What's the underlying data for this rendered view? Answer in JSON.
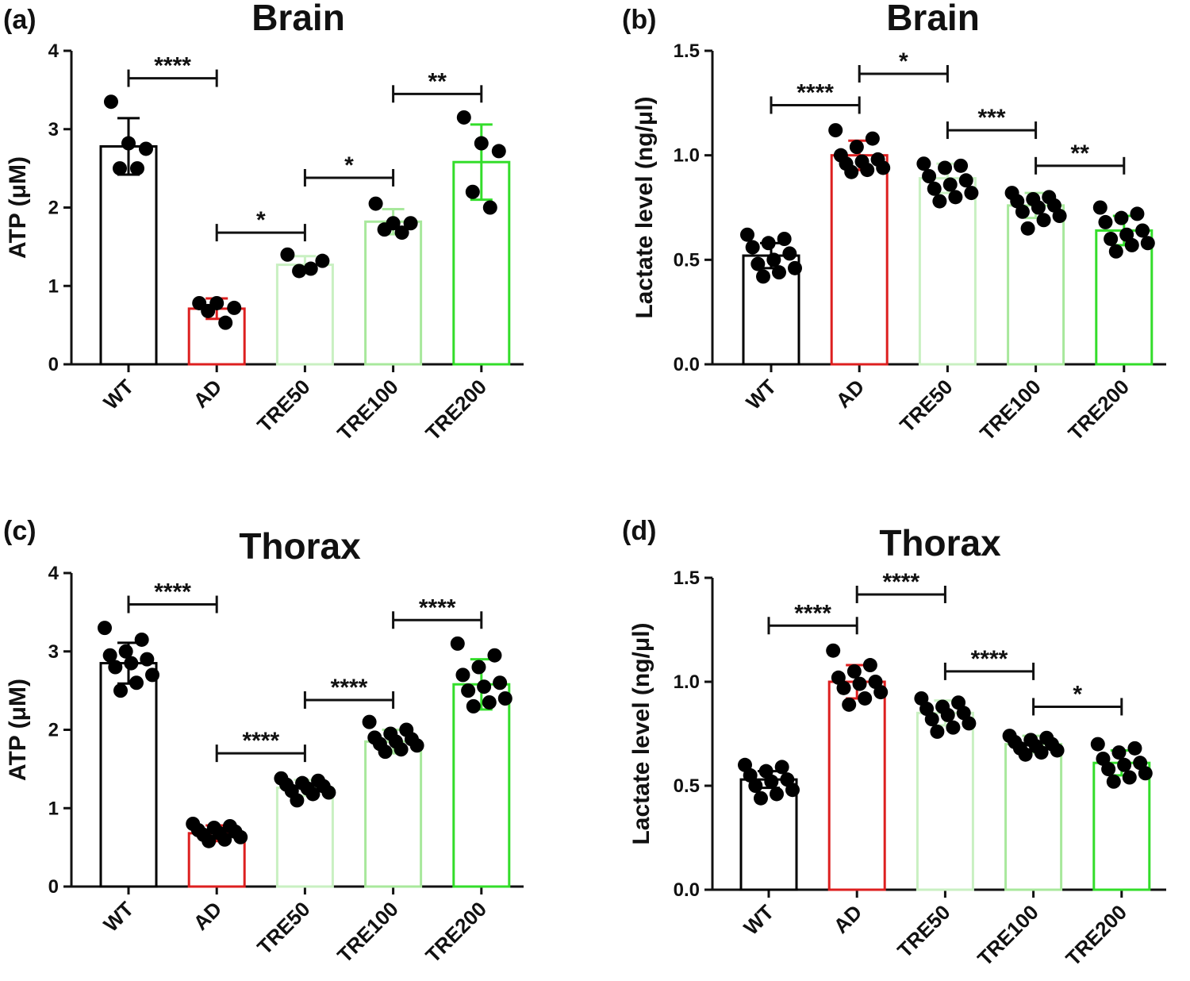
{
  "chart_data": [
    {
      "panel": "(a)",
      "type": "bar",
      "title": "Brain",
      "ylabel": "ATP (μM)",
      "ylim": [
        0,
        4
      ],
      "yticks": [
        "0",
        "1",
        "2",
        "3",
        "4"
      ],
      "categories": [
        "WT",
        "AD",
        "TRE50",
        "TRE100",
        "TRE200"
      ],
      "colors": [
        "#000000",
        "#dd1f1f",
        "#c9f0c2",
        "#a8e89c",
        "#33dd2a"
      ],
      "values": [
        2.78,
        0.71,
        1.27,
        1.82,
        2.58
      ],
      "errors": [
        0.36,
        0.13,
        0.11,
        0.16,
        0.48
      ],
      "points": [
        [
          3.35,
          2.82,
          2.75,
          2.5,
          2.5
        ],
        [
          0.78,
          0.78,
          0.72,
          0.68,
          0.53
        ],
        [
          1.4,
          1.32,
          1.22,
          1.19
        ],
        [
          2.05,
          1.8,
          1.8,
          1.72,
          1.68
        ],
        [
          3.15,
          2.82,
          2.72,
          2.2,
          2.0
        ]
      ],
      "significance": [
        {
          "from": 0,
          "to": 1,
          "label": "****",
          "y": 3.65
        },
        {
          "from": 1,
          "to": 2,
          "label": "*",
          "y": 1.68
        },
        {
          "from": 2,
          "to": 3,
          "label": "*",
          "y": 2.38
        },
        {
          "from": 3,
          "to": 4,
          "label": "**",
          "y": 3.45
        }
      ]
    },
    {
      "panel": "(b)",
      "type": "bar",
      "title": "Brain",
      "ylabel": "Lactate level (ng/μl)",
      "ylim": [
        0,
        1.5
      ],
      "yticks": [
        "0.0",
        "0.5",
        "1.0",
        "1.5"
      ],
      "categories": [
        "WT",
        "AD",
        "TRE50",
        "TRE100",
        "TRE200"
      ],
      "colors": [
        "#000000",
        "#dd1f1f",
        "#c9f0c2",
        "#a8e89c",
        "#33dd2a"
      ],
      "values": [
        0.52,
        1.0,
        0.89,
        0.76,
        0.64
      ],
      "errors": [
        0.06,
        0.07,
        0.07,
        0.06,
        0.07
      ],
      "points": [
        [
          0.62,
          0.6,
          0.58,
          0.56,
          0.53,
          0.5,
          0.48,
          0.46,
          0.44,
          0.42
        ],
        [
          1.12,
          1.08,
          1.04,
          1.0,
          0.98,
          0.97,
          0.96,
          0.94,
          0.93,
          0.92
        ],
        [
          0.96,
          0.95,
          0.94,
          0.9,
          0.88,
          0.86,
          0.84,
          0.82,
          0.8,
          0.78
        ],
        [
          0.82,
          0.8,
          0.79,
          0.78,
          0.76,
          0.75,
          0.73,
          0.71,
          0.69,
          0.65
        ],
        [
          0.75,
          0.72,
          0.7,
          0.68,
          0.64,
          0.62,
          0.6,
          0.58,
          0.57,
          0.54
        ]
      ],
      "significance": [
        {
          "from": 0,
          "to": 1,
          "label": "****",
          "y": 1.24
        },
        {
          "from": 1,
          "to": 2,
          "label": "*",
          "y": 1.39
        },
        {
          "from": 2,
          "to": 3,
          "label": "***",
          "y": 1.12
        },
        {
          "from": 3,
          "to": 4,
          "label": "**",
          "y": 0.95
        }
      ]
    },
    {
      "panel": "(c)",
      "type": "bar",
      "title": "Thorax",
      "ylabel": "ATP (μM)",
      "ylim": [
        0,
        4
      ],
      "yticks": [
        "0",
        "1",
        "2",
        "3",
        "4"
      ],
      "categories": [
        "WT",
        "AD",
        "TRE50",
        "TRE100",
        "TRE200"
      ],
      "colors": [
        "#000000",
        "#dd1f1f",
        "#c9f0c2",
        "#a8e89c",
        "#33dd2a"
      ],
      "values": [
        2.85,
        0.68,
        1.26,
        1.85,
        2.58
      ],
      "errors": [
        0.26,
        0.1,
        0.1,
        0.15,
        0.32
      ],
      "points": [
        [
          3.3,
          3.15,
          3.0,
          2.95,
          2.9,
          2.85,
          2.8,
          2.7,
          2.6,
          2.5
        ],
        [
          0.8,
          0.77,
          0.75,
          0.72,
          0.7,
          0.68,
          0.66,
          0.63,
          0.6,
          0.58
        ],
        [
          1.38,
          1.35,
          1.32,
          1.3,
          1.28,
          1.25,
          1.22,
          1.2,
          1.18,
          1.1
        ],
        [
          2.1,
          2.0,
          1.95,
          1.9,
          1.88,
          1.85,
          1.82,
          1.8,
          1.75,
          1.72
        ],
        [
          3.1,
          2.95,
          2.8,
          2.7,
          2.6,
          2.55,
          2.5,
          2.4,
          2.35,
          2.3
        ]
      ],
      "significance": [
        {
          "from": 0,
          "to": 1,
          "label": "****",
          "y": 3.6
        },
        {
          "from": 1,
          "to": 2,
          "label": "****",
          "y": 1.7
        },
        {
          "from": 2,
          "to": 3,
          "label": "****",
          "y": 2.38
        },
        {
          "from": 3,
          "to": 4,
          "label": "****",
          "y": 3.4
        }
      ]
    },
    {
      "panel": "(d)",
      "type": "bar",
      "title": "Thorax",
      "ylabel": "Lactate level (ng/μl)",
      "ylim": [
        0,
        1.5
      ],
      "yticks": [
        "0.0",
        "0.5",
        "1.0",
        "1.5"
      ],
      "categories": [
        "WT",
        "AD",
        "TRE50",
        "TRE100",
        "TRE200"
      ],
      "colors": [
        "#000000",
        "#dd1f1f",
        "#c9f0c2",
        "#a8e89c",
        "#33dd2a"
      ],
      "values": [
        0.53,
        1.0,
        0.85,
        0.7,
        0.61
      ],
      "errors": [
        0.04,
        0.08,
        0.06,
        0.04,
        0.06
      ],
      "points": [
        [
          0.6,
          0.59,
          0.57,
          0.55,
          0.53,
          0.52,
          0.5,
          0.48,
          0.46,
          0.44
        ],
        [
          1.15,
          1.08,
          1.05,
          1.02,
          1.0,
          0.99,
          0.97,
          0.95,
          0.92,
          0.89
        ],
        [
          0.92,
          0.9,
          0.88,
          0.87,
          0.85,
          0.84,
          0.82,
          0.8,
          0.78,
          0.76
        ],
        [
          0.74,
          0.73,
          0.72,
          0.71,
          0.7,
          0.69,
          0.68,
          0.67,
          0.66,
          0.65
        ],
        [
          0.7,
          0.68,
          0.66,
          0.63,
          0.61,
          0.6,
          0.58,
          0.56,
          0.54,
          0.52
        ]
      ],
      "significance": [
        {
          "from": 0,
          "to": 1,
          "label": "****",
          "y": 1.27
        },
        {
          "from": 1,
          "to": 2,
          "label": "****",
          "y": 1.42
        },
        {
          "from": 2,
          "to": 3,
          "label": "****",
          "y": 1.05
        },
        {
          "from": 3,
          "to": 4,
          "label": "*",
          "y": 0.88
        }
      ]
    }
  ]
}
